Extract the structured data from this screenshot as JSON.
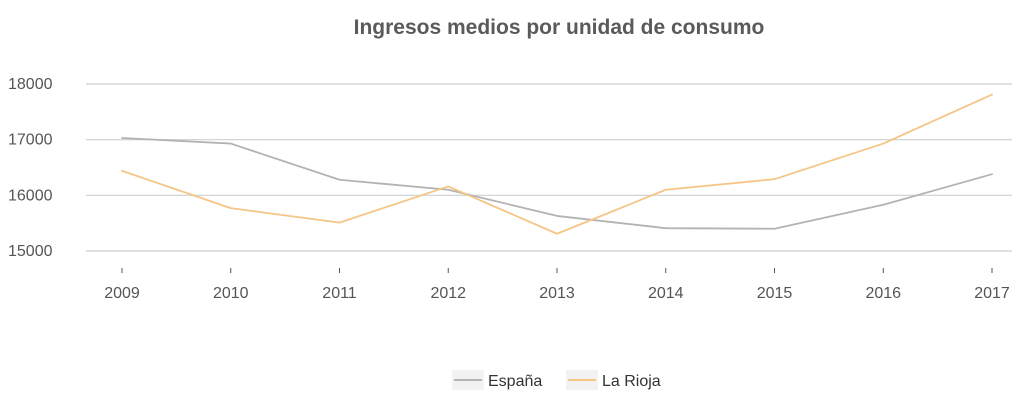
{
  "chart_data": {
    "type": "line",
    "title": "Ingresos medios por unidad de consumo",
    "xlabel": "",
    "ylabel": "",
    "x": [
      "2009",
      "2010",
      "2011",
      "2012",
      "2013",
      "2014",
      "2015",
      "2016",
      "2017"
    ],
    "ylim": [
      14800,
      18200
    ],
    "yticks": [
      15000,
      16000,
      17000,
      18000
    ],
    "grid": true,
    "legend_position": "bottom",
    "series": [
      {
        "name": "España",
        "color": "#b3b3b3",
        "values": [
          17030,
          16930,
          16280,
          16100,
          15630,
          15410,
          15400,
          15830,
          16380
        ]
      },
      {
        "name": "La Rioja",
        "color": "#f5c586",
        "values": [
          16440,
          15770,
          15510,
          16160,
          15310,
          16100,
          16290,
          16930,
          17810
        ]
      }
    ]
  }
}
